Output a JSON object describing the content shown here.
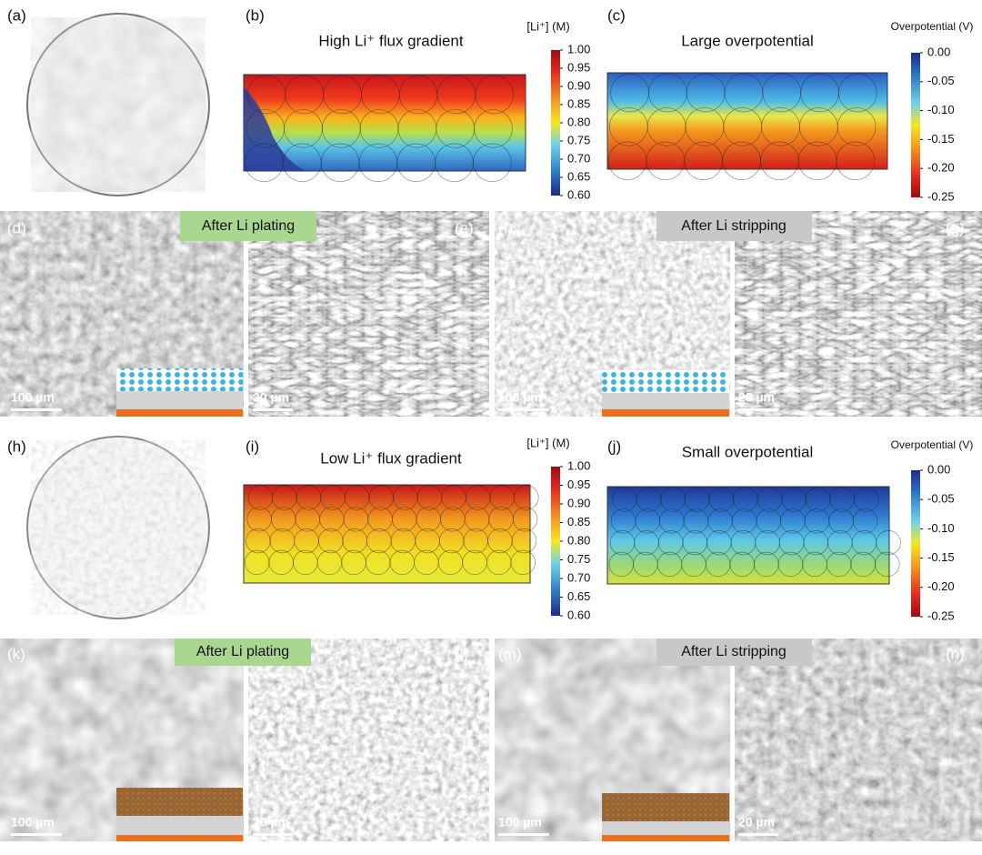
{
  "panel_labels": [
    "(a)",
    "(b)",
    "(c)",
    "(d)",
    "(e)",
    "(f)",
    "(g)",
    "(h)",
    "(i)",
    "(j)",
    "(k)",
    "(l)",
    "(m)",
    "(n)"
  ],
  "titles": {
    "b": "High Li⁺ flux gradient",
    "c": "Large overpotential",
    "i": "Low Li⁺ flux gradient",
    "j": "Small overpotential"
  },
  "colorbars": [
    {
      "label": "[Li⁺] (M)",
      "ticks": [
        "1.00",
        "0.95",
        "0.90",
        "0.85",
        "0.80",
        "0.75",
        "0.70",
        "0.65",
        "0.60"
      ]
    },
    {
      "label": "Overpotential (V)",
      "ticks": [
        "0.00",
        "-0.05",
        "-0.10",
        "-0.15",
        "-0.20",
        "-0.25"
      ]
    },
    {
      "label": "[Li⁺] (M)",
      "ticks": [
        "1.00",
        "0.95",
        "0.90",
        "0.85",
        "0.80",
        "0.75",
        "0.70",
        "0.65",
        "0.60"
      ]
    },
    {
      "label": "Overpotential (V)",
      "ticks": [
        "0.00",
        "-0.05",
        "-0.10",
        "-0.15",
        "-0.20",
        "-0.25"
      ]
    }
  ],
  "banners": [
    "After Li plating",
    "After Li stripping",
    "After Li plating",
    "After Li stripping"
  ],
  "scale_bars": [
    "100 µm",
    "20 µm",
    "100 µm",
    "20 µm",
    "100 µm",
    "20 µm",
    "100 µm",
    "20 µm"
  ]
}
